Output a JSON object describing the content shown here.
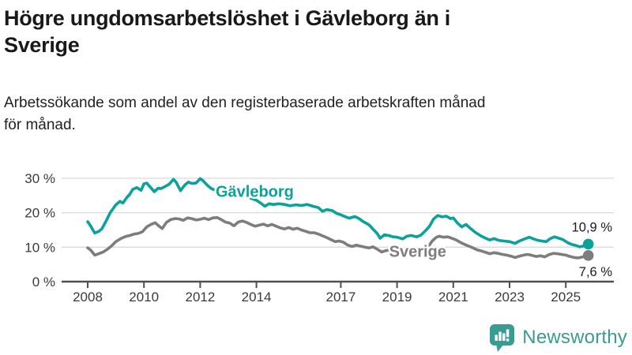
{
  "header": {
    "title_lines": [
      "Högre ungdomsarbetslöshet i Gävleborg än i",
      "Sverige"
    ],
    "subtitle_lines": [
      "Arbetssökande som andel av den registerbaserade arbetskraften månad",
      "för månad."
    ]
  },
  "branding": {
    "logo_text": "Newsworthy",
    "logo_color": "#3a9a94",
    "logo_icon": "newsworthy-speech-bubble-bar-chart-icon"
  },
  "chart_data": {
    "type": "line",
    "title": "Högre ungdomsarbetslöshet i Gävleborg än i Sverige",
    "subtitle": "Arbetssökande som andel av den registerbaserade arbetskraften månad för månad.",
    "xlabel": "",
    "ylabel": "",
    "ylim": [
      0,
      33
    ],
    "xlim": [
      2007.1,
      2026.7
    ],
    "grid": "horizontal",
    "legend_position": "inline-labels",
    "y_ticks": [
      {
        "value": 0,
        "label": "0 %"
      },
      {
        "value": 10,
        "label": "10 %"
      },
      {
        "value": 20,
        "label": "20 %"
      },
      {
        "value": 30,
        "label": "30 %"
      }
    ],
    "x_ticks": [
      {
        "year": 2008,
        "label": "2008"
      },
      {
        "year": 2010,
        "label": "2010"
      },
      {
        "year": 2012,
        "label": "2012"
      },
      {
        "year": 2014,
        "label": "2014"
      },
      {
        "year": 2017,
        "label": "2017"
      },
      {
        "year": 2019,
        "label": "2019"
      },
      {
        "year": 2021,
        "label": "2021"
      },
      {
        "year": 2023,
        "label": "2023"
      },
      {
        "year": 2025,
        "label": "2025"
      }
    ],
    "axis_color": "#4f4f51",
    "gridline_color": "#d9d9d9",
    "tick_label_color": "#3a3a3a",
    "end_label_color": "#1a1a1a",
    "series": [
      {
        "name": "Gävleborg",
        "color": "#0aa29a",
        "end_value": 10.9,
        "end_label": "10,9 %",
        "label_pos": {
          "x": 2012.55,
          "y": 24.6
        },
        "points": [
          [
            2008.0,
            17.4
          ],
          [
            2008.1,
            16.2
          ],
          [
            2008.25,
            14.1
          ],
          [
            2008.4,
            14.6
          ],
          [
            2008.5,
            15.3
          ],
          [
            2008.65,
            17.5
          ],
          [
            2008.8,
            20.0
          ],
          [
            2009.0,
            22.3
          ],
          [
            2009.15,
            23.3
          ],
          [
            2009.25,
            22.8
          ],
          [
            2009.4,
            24.5
          ],
          [
            2009.5,
            25.4
          ],
          [
            2009.6,
            26.8
          ],
          [
            2009.75,
            27.3
          ],
          [
            2009.9,
            26.5
          ],
          [
            2010.0,
            28.4
          ],
          [
            2010.1,
            28.6
          ],
          [
            2010.25,
            27.2
          ],
          [
            2010.37,
            26.1
          ],
          [
            2010.5,
            27.1
          ],
          [
            2010.6,
            27.0
          ],
          [
            2010.75,
            27.6
          ],
          [
            2010.9,
            28.3
          ],
          [
            2011.05,
            29.7
          ],
          [
            2011.15,
            28.8
          ],
          [
            2011.3,
            26.4
          ],
          [
            2011.45,
            28.0
          ],
          [
            2011.58,
            28.9
          ],
          [
            2011.7,
            28.5
          ],
          [
            2011.85,
            28.6
          ],
          [
            2012.0,
            29.9
          ],
          [
            2012.1,
            29.3
          ],
          [
            2012.25,
            28.0
          ],
          [
            2012.4,
            27.0
          ],
          [
            2012.55,
            26.5
          ],
          [
            2012.7,
            26.8
          ],
          [
            2012.85,
            26.2
          ],
          [
            2013.0,
            26.5
          ],
          [
            2013.2,
            25.8
          ],
          [
            2013.4,
            25.2
          ],
          [
            2013.6,
            25.0
          ],
          [
            2013.8,
            24.2
          ],
          [
            2014.0,
            23.6
          ],
          [
            2014.15,
            22.8
          ],
          [
            2014.3,
            21.9
          ],
          [
            2014.45,
            22.6
          ],
          [
            2014.6,
            22.4
          ],
          [
            2014.8,
            22.6
          ],
          [
            2015.0,
            22.4
          ],
          [
            2015.2,
            22.0
          ],
          [
            2015.4,
            22.3
          ],
          [
            2015.6,
            22.1
          ],
          [
            2015.8,
            22.4
          ],
          [
            2016.0,
            21.9
          ],
          [
            2016.2,
            21.5
          ],
          [
            2016.35,
            20.4
          ],
          [
            2016.5,
            20.9
          ],
          [
            2016.7,
            20.6
          ],
          [
            2016.85,
            19.8
          ],
          [
            2017.0,
            19.4
          ],
          [
            2017.2,
            18.7
          ],
          [
            2017.3,
            18.4
          ],
          [
            2017.5,
            18.9
          ],
          [
            2017.65,
            18.3
          ],
          [
            2017.8,
            17.4
          ],
          [
            2018.0,
            16.5
          ],
          [
            2018.15,
            15.2
          ],
          [
            2018.3,
            13.9
          ],
          [
            2018.4,
            12.6
          ],
          [
            2018.55,
            13.6
          ],
          [
            2018.7,
            13.4
          ],
          [
            2018.85,
            13.0
          ],
          [
            2019.0,
            12.9
          ],
          [
            2019.2,
            12.4
          ],
          [
            2019.35,
            13.2
          ],
          [
            2019.5,
            13.4
          ],
          [
            2019.7,
            13.0
          ],
          [
            2019.85,
            13.5
          ],
          [
            2020.0,
            14.7
          ],
          [
            2020.15,
            16.0
          ],
          [
            2020.3,
            18.2
          ],
          [
            2020.45,
            19.2
          ],
          [
            2020.6,
            18.8
          ],
          [
            2020.75,
            19.0
          ],
          [
            2020.9,
            18.3
          ],
          [
            2021.0,
            18.5
          ],
          [
            2021.15,
            17.0
          ],
          [
            2021.3,
            15.9
          ],
          [
            2021.45,
            16.6
          ],
          [
            2021.6,
            15.5
          ],
          [
            2021.8,
            14.2
          ],
          [
            2022.0,
            13.2
          ],
          [
            2022.15,
            12.6
          ],
          [
            2022.3,
            12.1
          ],
          [
            2022.45,
            12.5
          ],
          [
            2022.6,
            12.0
          ],
          [
            2022.8,
            11.8
          ],
          [
            2023.0,
            11.6
          ],
          [
            2023.2,
            11.1
          ],
          [
            2023.35,
            11.8
          ],
          [
            2023.5,
            12.3
          ],
          [
            2023.7,
            12.9
          ],
          [
            2023.85,
            12.4
          ],
          [
            2024.0,
            12.0
          ],
          [
            2024.15,
            11.8
          ],
          [
            2024.3,
            11.6
          ],
          [
            2024.45,
            12.5
          ],
          [
            2024.6,
            13.0
          ],
          [
            2024.75,
            12.6
          ],
          [
            2024.9,
            12.2
          ],
          [
            2025.05,
            11.4
          ],
          [
            2025.2,
            10.8
          ],
          [
            2025.35,
            10.5
          ],
          [
            2025.5,
            10.1
          ],
          [
            2025.65,
            10.4
          ],
          [
            2025.8,
            10.9
          ]
        ]
      },
      {
        "name": "Sverige",
        "color": "#7d7d7f",
        "end_value": 7.6,
        "end_label": "7,6 %",
        "label_pos": {
          "x": 2018.72,
          "y": 7.2
        },
        "points": [
          [
            2008.0,
            9.8
          ],
          [
            2008.1,
            9.2
          ],
          [
            2008.25,
            7.7
          ],
          [
            2008.4,
            8.1
          ],
          [
            2008.55,
            8.6
          ],
          [
            2008.7,
            9.4
          ],
          [
            2008.85,
            10.4
          ],
          [
            2009.0,
            11.6
          ],
          [
            2009.2,
            12.6
          ],
          [
            2009.35,
            13.1
          ],
          [
            2009.5,
            13.4
          ],
          [
            2009.65,
            13.8
          ],
          [
            2009.8,
            14.0
          ],
          [
            2009.95,
            14.5
          ],
          [
            2010.1,
            15.9
          ],
          [
            2010.25,
            16.6
          ],
          [
            2010.4,
            17.1
          ],
          [
            2010.55,
            16.0
          ],
          [
            2010.65,
            15.4
          ],
          [
            2010.8,
            17.2
          ],
          [
            2010.95,
            18.0
          ],
          [
            2011.1,
            18.3
          ],
          [
            2011.25,
            18.2
          ],
          [
            2011.4,
            17.8
          ],
          [
            2011.55,
            18.5
          ],
          [
            2011.7,
            18.3
          ],
          [
            2011.85,
            17.9
          ],
          [
            2012.0,
            18.1
          ],
          [
            2012.15,
            18.4
          ],
          [
            2012.3,
            18.0
          ],
          [
            2012.45,
            18.5
          ],
          [
            2012.6,
            18.6
          ],
          [
            2012.75,
            18.0
          ],
          [
            2012.9,
            17.3
          ],
          [
            2013.05,
            17.0
          ],
          [
            2013.2,
            16.2
          ],
          [
            2013.35,
            17.3
          ],
          [
            2013.5,
            17.6
          ],
          [
            2013.65,
            17.2
          ],
          [
            2013.8,
            16.6
          ],
          [
            2013.95,
            16.1
          ],
          [
            2014.1,
            16.4
          ],
          [
            2014.25,
            16.7
          ],
          [
            2014.4,
            16.2
          ],
          [
            2014.55,
            16.6
          ],
          [
            2014.7,
            16.1
          ],
          [
            2014.85,
            15.6
          ],
          [
            2015.0,
            15.3
          ],
          [
            2015.15,
            15.7
          ],
          [
            2015.3,
            15.2
          ],
          [
            2015.45,
            15.5
          ],
          [
            2015.6,
            15.0
          ],
          [
            2015.75,
            14.6
          ],
          [
            2015.9,
            14.2
          ],
          [
            2016.05,
            14.2
          ],
          [
            2016.2,
            13.8
          ],
          [
            2016.35,
            13.3
          ],
          [
            2016.5,
            12.8
          ],
          [
            2016.65,
            12.2
          ],
          [
            2016.8,
            11.6
          ],
          [
            2016.95,
            11.8
          ],
          [
            2017.1,
            11.4
          ],
          [
            2017.25,
            10.6
          ],
          [
            2017.4,
            10.2
          ],
          [
            2017.55,
            10.6
          ],
          [
            2017.7,
            10.3
          ],
          [
            2017.85,
            10.0
          ],
          [
            2018.0,
            9.8
          ],
          [
            2018.15,
            10.1
          ],
          [
            2018.3,
            9.4
          ],
          [
            2018.45,
            8.6
          ],
          [
            2018.6,
            9.0
          ],
          [
            2018.75,
            9.2
          ],
          [
            2018.9,
            8.9
          ],
          [
            2019.05,
            8.7
          ],
          [
            2019.2,
            9.0
          ],
          [
            2019.35,
            9.2
          ],
          [
            2019.5,
            8.9
          ],
          [
            2019.65,
            8.8
          ],
          [
            2019.8,
            9.0
          ],
          [
            2019.95,
            9.3
          ],
          [
            2020.1,
            10.0
          ],
          [
            2020.25,
            11.8
          ],
          [
            2020.4,
            12.9
          ],
          [
            2020.5,
            13.2
          ],
          [
            2020.65,
            12.9
          ],
          [
            2020.8,
            13.0
          ],
          [
            2020.95,
            12.6
          ],
          [
            2021.1,
            12.1
          ],
          [
            2021.25,
            11.4
          ],
          [
            2021.4,
            10.8
          ],
          [
            2021.55,
            10.3
          ],
          [
            2021.7,
            9.8
          ],
          [
            2021.85,
            9.2
          ],
          [
            2022.0,
            8.9
          ],
          [
            2022.15,
            8.5
          ],
          [
            2022.3,
            8.1
          ],
          [
            2022.45,
            8.4
          ],
          [
            2022.6,
            8.2
          ],
          [
            2022.75,
            7.9
          ],
          [
            2022.9,
            7.7
          ],
          [
            2023.05,
            7.4
          ],
          [
            2023.2,
            7.0
          ],
          [
            2023.35,
            7.4
          ],
          [
            2023.5,
            7.7
          ],
          [
            2023.65,
            7.9
          ],
          [
            2023.8,
            7.6
          ],
          [
            2023.95,
            7.3
          ],
          [
            2024.1,
            7.5
          ],
          [
            2024.25,
            7.2
          ],
          [
            2024.4,
            7.8
          ],
          [
            2024.55,
            8.2
          ],
          [
            2024.7,
            8.1
          ],
          [
            2024.85,
            7.9
          ],
          [
            2025.0,
            7.7
          ],
          [
            2025.15,
            7.3
          ],
          [
            2025.3,
            7.0
          ],
          [
            2025.45,
            6.9
          ],
          [
            2025.6,
            7.2
          ],
          [
            2025.8,
            7.6
          ]
        ]
      }
    ]
  }
}
